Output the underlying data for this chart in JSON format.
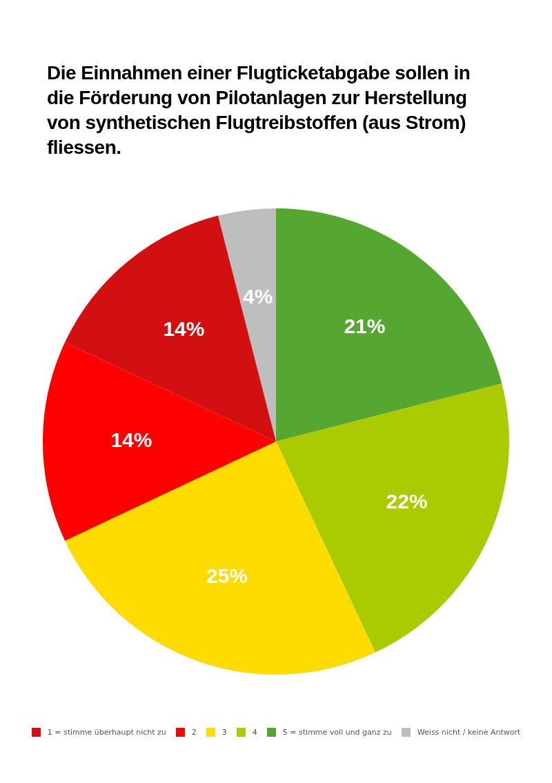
{
  "chart_data": {
    "type": "pie",
    "title": "Die Einnahmen einer Flugticketabgabe sollen in die Förderung von Pilotanlagen zur Herstellung von synthetischen Flugtreibstoffen (aus Strom) fliessen.",
    "categories": [
      "1 = stimme überhaupt nicht zu",
      "2",
      "3",
      "4",
      "5 = stimme voll und ganz zu",
      "Weiss nicht / keine Antwort"
    ],
    "values": [
      14,
      14,
      25,
      22,
      21,
      4
    ],
    "colors": [
      "#d20f11",
      "#ff0000",
      "#ffdc00",
      "#aacb00",
      "#56a632",
      "#bebebe"
    ],
    "value_labels": [
      "14%",
      "14%",
      "25%",
      "22%",
      "21%",
      "4%"
    ],
    "legend": "bottom"
  }
}
